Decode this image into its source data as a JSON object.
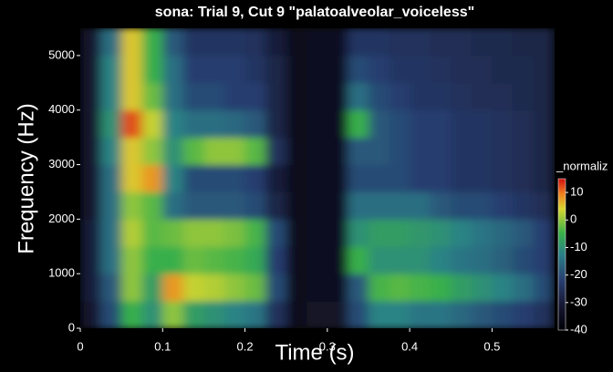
{
  "chart_data": {
    "type": "heatmap",
    "title": "sona: Trial 9, Cut 9 \"palatoalveolar_voiceless\"",
    "x_label": "Time (s)",
    "y_label": "Frequency (Hz)",
    "colorbar_label": "_normaliz",
    "xlim": [
      0,
      0.576
    ],
    "xticks": [
      0,
      0.1,
      0.2,
      0.3,
      0.4,
      0.5
    ],
    "ylim": [
      0,
      5500
    ],
    "yticks": [
      0,
      1000,
      2000,
      3000,
      4000,
      5000
    ],
    "clim": [
      -40,
      15
    ],
    "cticks": [
      10,
      0,
      -10,
      -20,
      -30,
      -40
    ],
    "x": [
      0.0125,
      0.0375,
      0.0625,
      0.0875,
      0.1125,
      0.1375,
      0.1625,
      0.1875,
      0.2125,
      0.2375,
      0.2625,
      0.2875,
      0.3125,
      0.3375,
      0.3625,
      0.3875,
      0.4125,
      0.4375,
      0.4625,
      0.4875,
      0.5125,
      0.5375,
      0.5625
    ],
    "y": [
      250,
      750,
      1250,
      1750,
      2250,
      2750,
      3250,
      3750,
      4250,
      4750,
      5250
    ],
    "z": [
      [
        -32,
        -20,
        -5,
        -10,
        0,
        -8,
        -10,
        -12,
        -14,
        -25,
        -35,
        -33,
        -33,
        -20,
        -12,
        -12,
        -14,
        -14,
        -16,
        -18,
        -20,
        -22,
        -25
      ],
      [
        -30,
        -18,
        0,
        -8,
        8,
        3,
        2,
        0,
        -2,
        -20,
        -36,
        -34,
        -34,
        -18,
        -4,
        -3,
        -4,
        -5,
        -8,
        -10,
        -12,
        -15,
        -20
      ],
      [
        -30,
        -15,
        0,
        -5,
        -5,
        -2,
        -3,
        -4,
        -6,
        -22,
        -36,
        -34,
        -34,
        -5,
        -10,
        -10,
        -10,
        -12,
        -14,
        -15,
        -17,
        -20,
        -22
      ],
      [
        -30,
        -15,
        2,
        -3,
        -2,
        0,
        0,
        -1,
        -4,
        -20,
        -36,
        -34,
        -34,
        -10,
        -8,
        -8,
        -9,
        -10,
        -12,
        -14,
        -16,
        -18,
        -22
      ],
      [
        -32,
        -15,
        0,
        -3,
        -15,
        -18,
        -18,
        -18,
        -20,
        -28,
        -36,
        -34,
        -34,
        -15,
        -15,
        -15,
        -15,
        -18,
        -20,
        -20,
        -22,
        -24,
        -26
      ],
      [
        -32,
        -15,
        5,
        8,
        -12,
        -20,
        -20,
        -20,
        -22,
        -30,
        -36,
        -34,
        -34,
        -20,
        -20,
        -20,
        -22,
        -22,
        -24,
        -24,
        -25,
        -26,
        -28
      ],
      [
        -32,
        -12,
        5,
        0,
        -10,
        -3,
        0,
        0,
        -3,
        -25,
        -36,
        -34,
        -34,
        -18,
        -18,
        -20,
        -22,
        -22,
        -24,
        -24,
        -25,
        -26,
        -28
      ],
      [
        -32,
        -10,
        12,
        3,
        -12,
        -15,
        -15,
        -16,
        -18,
        -28,
        -36,
        -34,
        -34,
        -5,
        -18,
        -20,
        -22,
        -22,
        -24,
        -24,
        -25,
        -26,
        -28
      ],
      [
        -32,
        -12,
        5,
        -2,
        -15,
        -20,
        -20,
        -22,
        -22,
        -28,
        -36,
        -34,
        -34,
        -15,
        -20,
        -22,
        -24,
        -24,
        -25,
        -26,
        -26,
        -27,
        -28
      ],
      [
        -32,
        -12,
        5,
        -5,
        -15,
        -22,
        -22,
        -22,
        -24,
        -28,
        -36,
        -34,
        -34,
        -20,
        -22,
        -24,
        -24,
        -25,
        -26,
        -26,
        -27,
        -27,
        -28
      ],
      [
        -32,
        -15,
        5,
        -5,
        -18,
        -24,
        -24,
        -24,
        -25,
        -30,
        -36,
        -34,
        -34,
        -24,
        -24,
        -25,
        -25,
        -26,
        -26,
        -27,
        -27,
        -28,
        -28
      ]
    ]
  }
}
